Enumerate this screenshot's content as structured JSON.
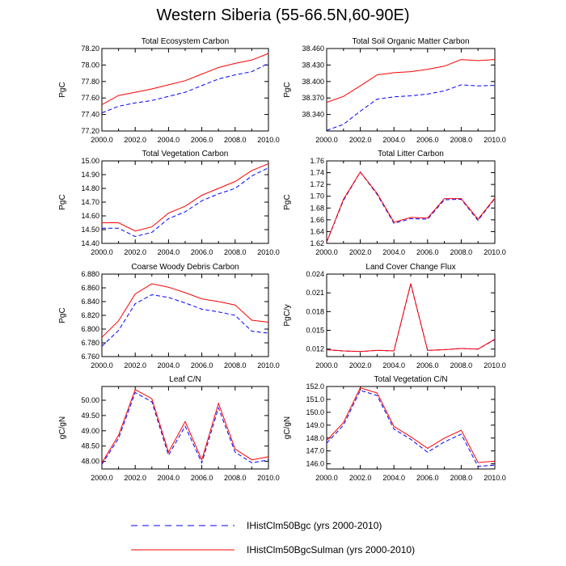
{
  "figure": {
    "title": "Western Siberia (55-66.5N,60-90E)",
    "legend": [
      {
        "label": "IHistClm50Bgc (yrs 2000-2010)",
        "color": "#0000ff",
        "dash": "dashed"
      },
      {
        "label": "IHistClm50BgcSulman (yrs 2000-2010)",
        "color": "#ff0000",
        "dash": "solid"
      }
    ]
  },
  "chart_data": [
    {
      "type": "line",
      "title": "Total Ecosystem Carbon",
      "ylabel": "PgC",
      "x": [
        2000,
        2001,
        2002,
        2003,
        2004,
        2005,
        2006,
        2007,
        2008,
        2009,
        2010
      ],
      "xlim": [
        2000,
        2010
      ],
      "xticks": [
        "2000.0",
        "2002.0",
        "2004.0",
        "2006.0",
        "2008.0",
        "2010.0"
      ],
      "ylim": [
        77.2,
        78.2
      ],
      "yticks": [
        "77.20",
        "77.40",
        "77.60",
        "77.80",
        "78.00",
        "78.20"
      ],
      "series": [
        {
          "values": [
            77.42,
            77.5,
            77.54,
            77.57,
            77.62,
            77.67,
            77.75,
            77.83,
            77.88,
            77.92,
            78.02
          ],
          "color": "#0000ff",
          "dash": "dashed"
        },
        {
          "values": [
            77.52,
            77.63,
            77.67,
            77.71,
            77.76,
            77.81,
            77.89,
            77.97,
            78.02,
            78.06,
            78.14
          ],
          "color": "#ff0000",
          "dash": "solid"
        }
      ]
    },
    {
      "type": "line",
      "title": "Total Soil Organic Matter Carbon",
      "ylabel": "PgC",
      "x": [
        2000,
        2001,
        2002,
        2003,
        2004,
        2005,
        2006,
        2007,
        2008,
        2009,
        2010
      ],
      "xlim": [
        2000,
        2010
      ],
      "xticks": [
        "2000.0",
        "2002.0",
        "2004.0",
        "2006.0",
        "2008.0",
        "2010.0"
      ],
      "ylim": [
        38.31,
        38.46
      ],
      "yticks": [
        "38.340",
        "38.370",
        "38.400",
        "38.430",
        "38.460"
      ],
      "series": [
        {
          "values": [
            38.311,
            38.322,
            38.346,
            38.368,
            38.372,
            38.374,
            38.377,
            38.383,
            38.394,
            38.392,
            38.393
          ],
          "color": "#0000ff",
          "dash": "dashed"
        },
        {
          "values": [
            38.362,
            38.373,
            38.392,
            38.412,
            38.416,
            38.418,
            38.422,
            38.428,
            38.44,
            38.438,
            38.44
          ],
          "color": "#ff0000",
          "dash": "solid"
        }
      ]
    },
    {
      "type": "line",
      "title": "Total Vegetation Carbon",
      "ylabel": "PgC",
      "x": [
        2000,
        2001,
        2002,
        2003,
        2004,
        2005,
        2006,
        2007,
        2008,
        2009,
        2010
      ],
      "xlim": [
        2000,
        2010
      ],
      "xticks": [
        "2000.0",
        "2002.0",
        "2004.0",
        "2006.0",
        "2008.0",
        "2010.0"
      ],
      "ylim": [
        14.4,
        15.0
      ],
      "yticks": [
        "14.40",
        "14.50",
        "14.60",
        "14.70",
        "14.80",
        "14.90",
        "15.00"
      ],
      "series": [
        {
          "values": [
            14.51,
            14.51,
            14.45,
            14.48,
            14.58,
            14.63,
            14.71,
            14.76,
            14.8,
            14.89,
            14.95
          ],
          "color": "#0000ff",
          "dash": "dashed"
        },
        {
          "values": [
            14.55,
            14.55,
            14.49,
            14.52,
            14.62,
            14.67,
            14.75,
            14.8,
            14.85,
            14.93,
            14.98
          ],
          "color": "#ff0000",
          "dash": "solid"
        }
      ]
    },
    {
      "type": "line",
      "title": "Total Litter Carbon",
      "ylabel": "PgC",
      "x": [
        2000,
        2001,
        2002,
        2003,
        2004,
        2005,
        2006,
        2007,
        2008,
        2009,
        2010
      ],
      "xlim": [
        2000,
        2010
      ],
      "xticks": [
        "2000.0",
        "2002.0",
        "2004.0",
        "2006.0",
        "2008.0",
        "2010.0"
      ],
      "ylim": [
        1.62,
        1.76
      ],
      "yticks": [
        "1.62",
        "1.64",
        "1.66",
        "1.68",
        "1.70",
        "1.72",
        "1.74",
        "1.76"
      ],
      "series": [
        {
          "values": [
            1.622,
            1.693,
            1.741,
            1.703,
            1.654,
            1.662,
            1.661,
            1.694,
            1.695,
            1.659,
            1.696
          ],
          "color": "#0000ff",
          "dash": "dashed"
        },
        {
          "values": [
            1.622,
            1.695,
            1.741,
            1.705,
            1.656,
            1.664,
            1.663,
            1.696,
            1.696,
            1.661,
            1.697
          ],
          "color": "#ff0000",
          "dash": "solid"
        }
      ]
    },
    {
      "type": "line",
      "title": "Coarse Woody Debris Carbon",
      "ylabel": "PgC",
      "x": [
        2000,
        2001,
        2002,
        2003,
        2004,
        2005,
        2006,
        2007,
        2008,
        2009,
        2010
      ],
      "xlim": [
        2000,
        2010
      ],
      "xticks": [
        "2000.0",
        "2002.0",
        "2004.0",
        "2006.0",
        "2008.0",
        "2010.0"
      ],
      "ylim": [
        6.76,
        6.88
      ],
      "yticks": [
        "6.760",
        "6.780",
        "6.800",
        "6.820",
        "6.840",
        "6.860",
        "6.880"
      ],
      "series": [
        {
          "values": [
            6.775,
            6.798,
            6.837,
            6.85,
            6.846,
            6.838,
            6.829,
            6.825,
            6.82,
            6.797,
            6.794
          ],
          "color": "#0000ff",
          "dash": "dashed"
        },
        {
          "values": [
            6.788,
            6.812,
            6.851,
            6.866,
            6.861,
            6.853,
            6.844,
            6.84,
            6.835,
            6.813,
            6.81
          ],
          "color": "#ff0000",
          "dash": "solid"
        }
      ]
    },
    {
      "type": "line",
      "title": "Land Cover Change Flux",
      "ylabel": "PgC/y",
      "x": [
        2000,
        2001,
        2002,
        2003,
        2004,
        2005,
        2006,
        2007,
        2008,
        2009,
        2010
      ],
      "xlim": [
        2000,
        2010
      ],
      "xticks": [
        "2000.0",
        "2002.0",
        "2004.0",
        "2006.0",
        "2008.0",
        "2010.0"
      ],
      "ylim": [
        0.0108,
        0.024
      ],
      "yticks": [
        "0.012",
        "0.015",
        "0.018",
        "0.021",
        "0.024"
      ],
      "series": [
        {
          "values": [
            0.0119,
            0.0117,
            0.0116,
            0.0118,
            0.0117,
            0.0224,
            0.0118,
            0.0119,
            0.0121,
            0.012,
            0.0135
          ],
          "color": "#0000ff",
          "dash": "dashed"
        },
        {
          "values": [
            0.0119,
            0.0117,
            0.0116,
            0.0118,
            0.0117,
            0.0225,
            0.0118,
            0.0119,
            0.0121,
            0.012,
            0.0136
          ],
          "color": "#ff0000",
          "dash": "solid"
        }
      ]
    },
    {
      "type": "line",
      "title": "Leaf C/N",
      "ylabel": "gC/gN",
      "x": [
        2000,
        2001,
        2002,
        2003,
        2004,
        2005,
        2006,
        2007,
        2008,
        2009,
        2010
      ],
      "xlim": [
        2000,
        2010
      ],
      "xticks": [
        "2000.0",
        "2002.0",
        "2004.0",
        "2006.0",
        "2008.0",
        "2010.0"
      ],
      "ylim": [
        47.75,
        50.45
      ],
      "yticks": [
        "48.00",
        "48.50",
        "49.00",
        "49.50",
        "50.00"
      ],
      "series": [
        {
          "values": [
            47.9,
            48.75,
            50.25,
            49.95,
            48.2,
            49.15,
            47.95,
            49.75,
            48.3,
            47.95,
            48.05
          ],
          "color": "#0000ff",
          "dash": "dashed"
        },
        {
          "values": [
            47.95,
            48.85,
            50.35,
            50.05,
            48.3,
            49.3,
            48.05,
            49.9,
            48.4,
            48.05,
            48.15
          ],
          "color": "#ff0000",
          "dash": "solid"
        }
      ]
    },
    {
      "type": "line",
      "title": "Total Vegetation C/N",
      "ylabel": "gC/gN",
      "x": [
        2000,
        2001,
        2002,
        2003,
        2004,
        2005,
        2006,
        2007,
        2008,
        2009,
        2010
      ],
      "xlim": [
        2000,
        2010
      ],
      "xticks": [
        "2000.0",
        "2002.0",
        "2004.0",
        "2006.0",
        "2008.0",
        "2010.0"
      ],
      "ylim": [
        145.6,
        152.0
      ],
      "yticks": [
        "146.0",
        "147.0",
        "148.0",
        "149.0",
        "150.0",
        "151.0",
        "152.0"
      ],
      "series": [
        {
          "values": [
            147.6,
            149.0,
            151.7,
            151.3,
            148.7,
            147.9,
            146.9,
            147.7,
            148.3,
            145.8,
            145.9
          ],
          "color": "#0000ff",
          "dash": "dashed"
        },
        {
          "values": [
            147.8,
            149.2,
            151.9,
            151.5,
            148.9,
            148.1,
            147.2,
            148.0,
            148.6,
            146.1,
            146.2
          ],
          "color": "#ff0000",
          "dash": "solid"
        }
      ]
    }
  ]
}
